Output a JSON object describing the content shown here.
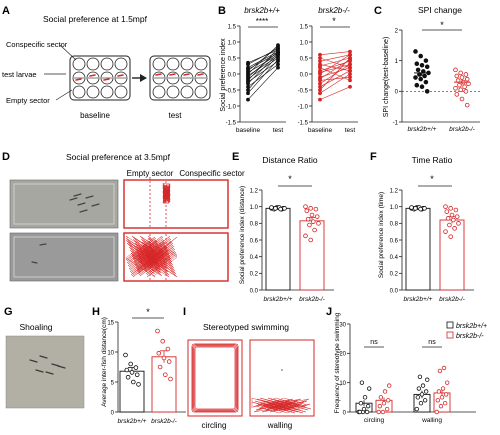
{
  "panels": {
    "A": {
      "letter": "A",
      "title": "Social preference at 1.5mpf",
      "labels": [
        "Conspecific sector",
        "test larvae",
        "Empty sector"
      ],
      "phases": [
        "baseline",
        "test"
      ]
    },
    "B": {
      "letter": "B",
      "sub1": "brsk2b+/+",
      "sub2": "brsk2b-/-",
      "ylabel": "Social preference index",
      "sig1": "****",
      "sig2": "*"
    },
    "C": {
      "letter": "C",
      "title": "SPI change",
      "ylabel": "SPI change(test-baseline)",
      "sig": "*"
    },
    "D": {
      "letter": "D",
      "title": "Social preference at 3.5mpf",
      "empty": "Empty sector",
      "consp": "Conspecific sector"
    },
    "E": {
      "letter": "E",
      "title": "Distance Ratio",
      "ylabel": "Social preference index (distance)",
      "sig": "*"
    },
    "F": {
      "letter": "F",
      "title": "Time Ratio",
      "ylabel": "Social preference index (time)",
      "sig": "*"
    },
    "G": {
      "letter": "G",
      "title": "Shoaling"
    },
    "H": {
      "letter": "H",
      "ylabel": "Average inter-fish distance(cm)",
      "sig": "*"
    },
    "I": {
      "letter": "I",
      "title": "Stereotyped swimming",
      "cap1": "circling",
      "cap2": "walling"
    },
    "J": {
      "letter": "J",
      "ylabel": "Frequency of stereotype swimming",
      "ns1": "ns",
      "ns2": "ns"
    }
  },
  "genotypes": {
    "wt": "brsk2b+/+",
    "ko": "brsk2b-/-"
  },
  "colors": {
    "wt": "#111111",
    "ko": "#d62728"
  },
  "chart_data": [
    {
      "id": "B-wt",
      "type": "line",
      "x": [
        "baseline",
        "test"
      ],
      "ylim": [
        -1.5,
        1.5
      ],
      "yticks": [
        -1.5,
        -1.0,
        -0.5,
        0.0,
        0.5,
        1.0,
        1.5
      ],
      "pairs": [
        [
          0.35,
          0.75
        ],
        [
          0.3,
          0.8
        ],
        [
          0.2,
          0.7
        ],
        [
          0.15,
          0.65
        ],
        [
          0.1,
          0.85
        ],
        [
          0.05,
          0.6
        ],
        [
          0.0,
          0.9
        ],
        [
          -0.05,
          0.55
        ],
        [
          -0.1,
          0.7
        ],
        [
          -0.15,
          0.5
        ],
        [
          -0.2,
          0.8
        ],
        [
          -0.25,
          0.4
        ],
        [
          -0.3,
          0.65
        ],
        [
          -0.4,
          0.3
        ],
        [
          -0.5,
          0.6
        ],
        [
          -0.6,
          0.45
        ],
        [
          -0.8,
          0.2
        ]
      ]
    },
    {
      "id": "B-ko",
      "type": "line",
      "x": [
        "baseline",
        "test"
      ],
      "ylim": [
        -1.5,
        1.5
      ],
      "yticks": [
        -1.5,
        -1.0,
        -0.5,
        0.0,
        0.5,
        1.0,
        1.5
      ],
      "pairs": [
        [
          0.6,
          0.7
        ],
        [
          0.5,
          0.2
        ],
        [
          0.4,
          0.6
        ],
        [
          0.3,
          0.1
        ],
        [
          0.25,
          0.5
        ],
        [
          0.2,
          -0.2
        ],
        [
          0.1,
          0.4
        ],
        [
          0.05,
          0.3
        ],
        [
          0.0,
          0.6
        ],
        [
          -0.1,
          0.2
        ],
        [
          -0.15,
          0.45
        ],
        [
          -0.2,
          -0.1
        ],
        [
          -0.3,
          0.3
        ],
        [
          -0.4,
          0.1
        ],
        [
          -0.5,
          0.5
        ],
        [
          -0.6,
          0.0
        ],
        [
          -0.8,
          -0.4
        ]
      ]
    },
    {
      "id": "C",
      "type": "scatter",
      "categories": [
        "brsk2b+/+",
        "brsk2b-/-"
      ],
      "ylim": [
        -1,
        2
      ],
      "yticks": [
        -1,
        0,
        1,
        2
      ],
      "means": [
        0.6,
        0.3
      ],
      "sem": [
        0.1,
        0.08
      ],
      "points": [
        [
          1.3,
          1.15,
          1.0,
          0.9,
          0.85,
          0.8,
          0.7,
          0.65,
          0.6,
          0.55,
          0.5,
          0.45,
          0.4,
          0.3,
          0.2,
          0.15,
          0.0
        ],
        [
          0.7,
          0.6,
          0.55,
          0.5,
          0.45,
          0.4,
          0.35,
          0.3,
          0.25,
          0.2,
          0.15,
          0.1,
          0.05,
          0.0,
          -0.1,
          -0.25,
          -0.45
        ]
      ]
    },
    {
      "id": "E",
      "type": "bar",
      "categories": [
        "brsk2b+/+",
        "brsk2b-/-"
      ],
      "values": [
        0.98,
        0.83
      ],
      "sem": [
        0.01,
        0.04
      ],
      "ylim": [
        0,
        1.2
      ],
      "yticks": [
        0.0,
        0.2,
        0.4,
        0.6,
        0.8,
        1.0,
        1.2
      ],
      "points": [
        [
          0.98,
          0.99,
          0.97,
          0.98,
          0.99,
          0.98,
          0.97,
          0.99,
          0.98,
          0.98,
          0.97,
          0.99
        ],
        [
          1.0,
          0.98,
          0.97,
          0.95,
          0.9,
          0.88,
          0.85,
          0.82,
          0.8,
          0.78,
          0.72,
          0.65,
          0.6
        ]
      ]
    },
    {
      "id": "F",
      "type": "bar",
      "categories": [
        "brsk2b+/+",
        "brsk2b-/-"
      ],
      "values": [
        0.98,
        0.84
      ],
      "sem": [
        0.01,
        0.04
      ],
      "ylim": [
        0,
        1.2
      ],
      "yticks": [
        0.0,
        0.2,
        0.4,
        0.6,
        0.8,
        1.0,
        1.2
      ],
      "points": [
        [
          0.98,
          0.99,
          0.97,
          0.98,
          0.99,
          0.98,
          0.97,
          0.99,
          0.98,
          0.98,
          0.97,
          0.99
        ],
        [
          1.0,
          0.98,
          0.96,
          0.94,
          0.9,
          0.88,
          0.86,
          0.84,
          0.8,
          0.78,
          0.74,
          0.7,
          0.64
        ]
      ]
    },
    {
      "id": "H",
      "type": "bar",
      "categories": [
        "brsk2b+/+",
        "brsk2b-/-"
      ],
      "values": [
        6.8,
        9.2
      ],
      "sem": [
        0.6,
        1.0
      ],
      "ylim": [
        0,
        15
      ],
      "yticks": [
        0,
        5,
        10,
        15
      ],
      "points": [
        [
          9.5,
          8.0,
          7.4,
          7.0,
          6.6,
          6.2,
          5.8,
          5.0,
          4.6
        ],
        [
          13.5,
          11.8,
          10.5,
          9.8,
          9.0,
          8.4,
          7.5,
          6.2,
          5.5
        ]
      ]
    },
    {
      "id": "J",
      "type": "bar",
      "categories": [
        "circling",
        "walling"
      ],
      "series": [
        "brsk2b+/+",
        "brsk2b-/-"
      ],
      "values": [
        [
          3,
          4
        ],
        [
          6,
          6.5
        ]
      ],
      "sem": [
        [
          1,
          1
        ],
        [
          1.3,
          1.2
        ]
      ],
      "ylim": [
        0,
        30
      ],
      "yticks": [
        0,
        10,
        20,
        30
      ],
      "points": [
        [
          [
            0,
            0,
            0,
            0,
            1,
            2,
            3,
            5,
            8,
            10
          ],
          [
            0,
            0,
            1,
            2,
            3,
            4,
            5,
            7,
            9
          ]
        ],
        [
          [
            1,
            3,
            4,
            5,
            6,
            7,
            8,
            9,
            11,
            12
          ],
          [
            0,
            2,
            3,
            4,
            5,
            6,
            7,
            8,
            10,
            14,
            15
          ]
        ]
      ]
    }
  ]
}
